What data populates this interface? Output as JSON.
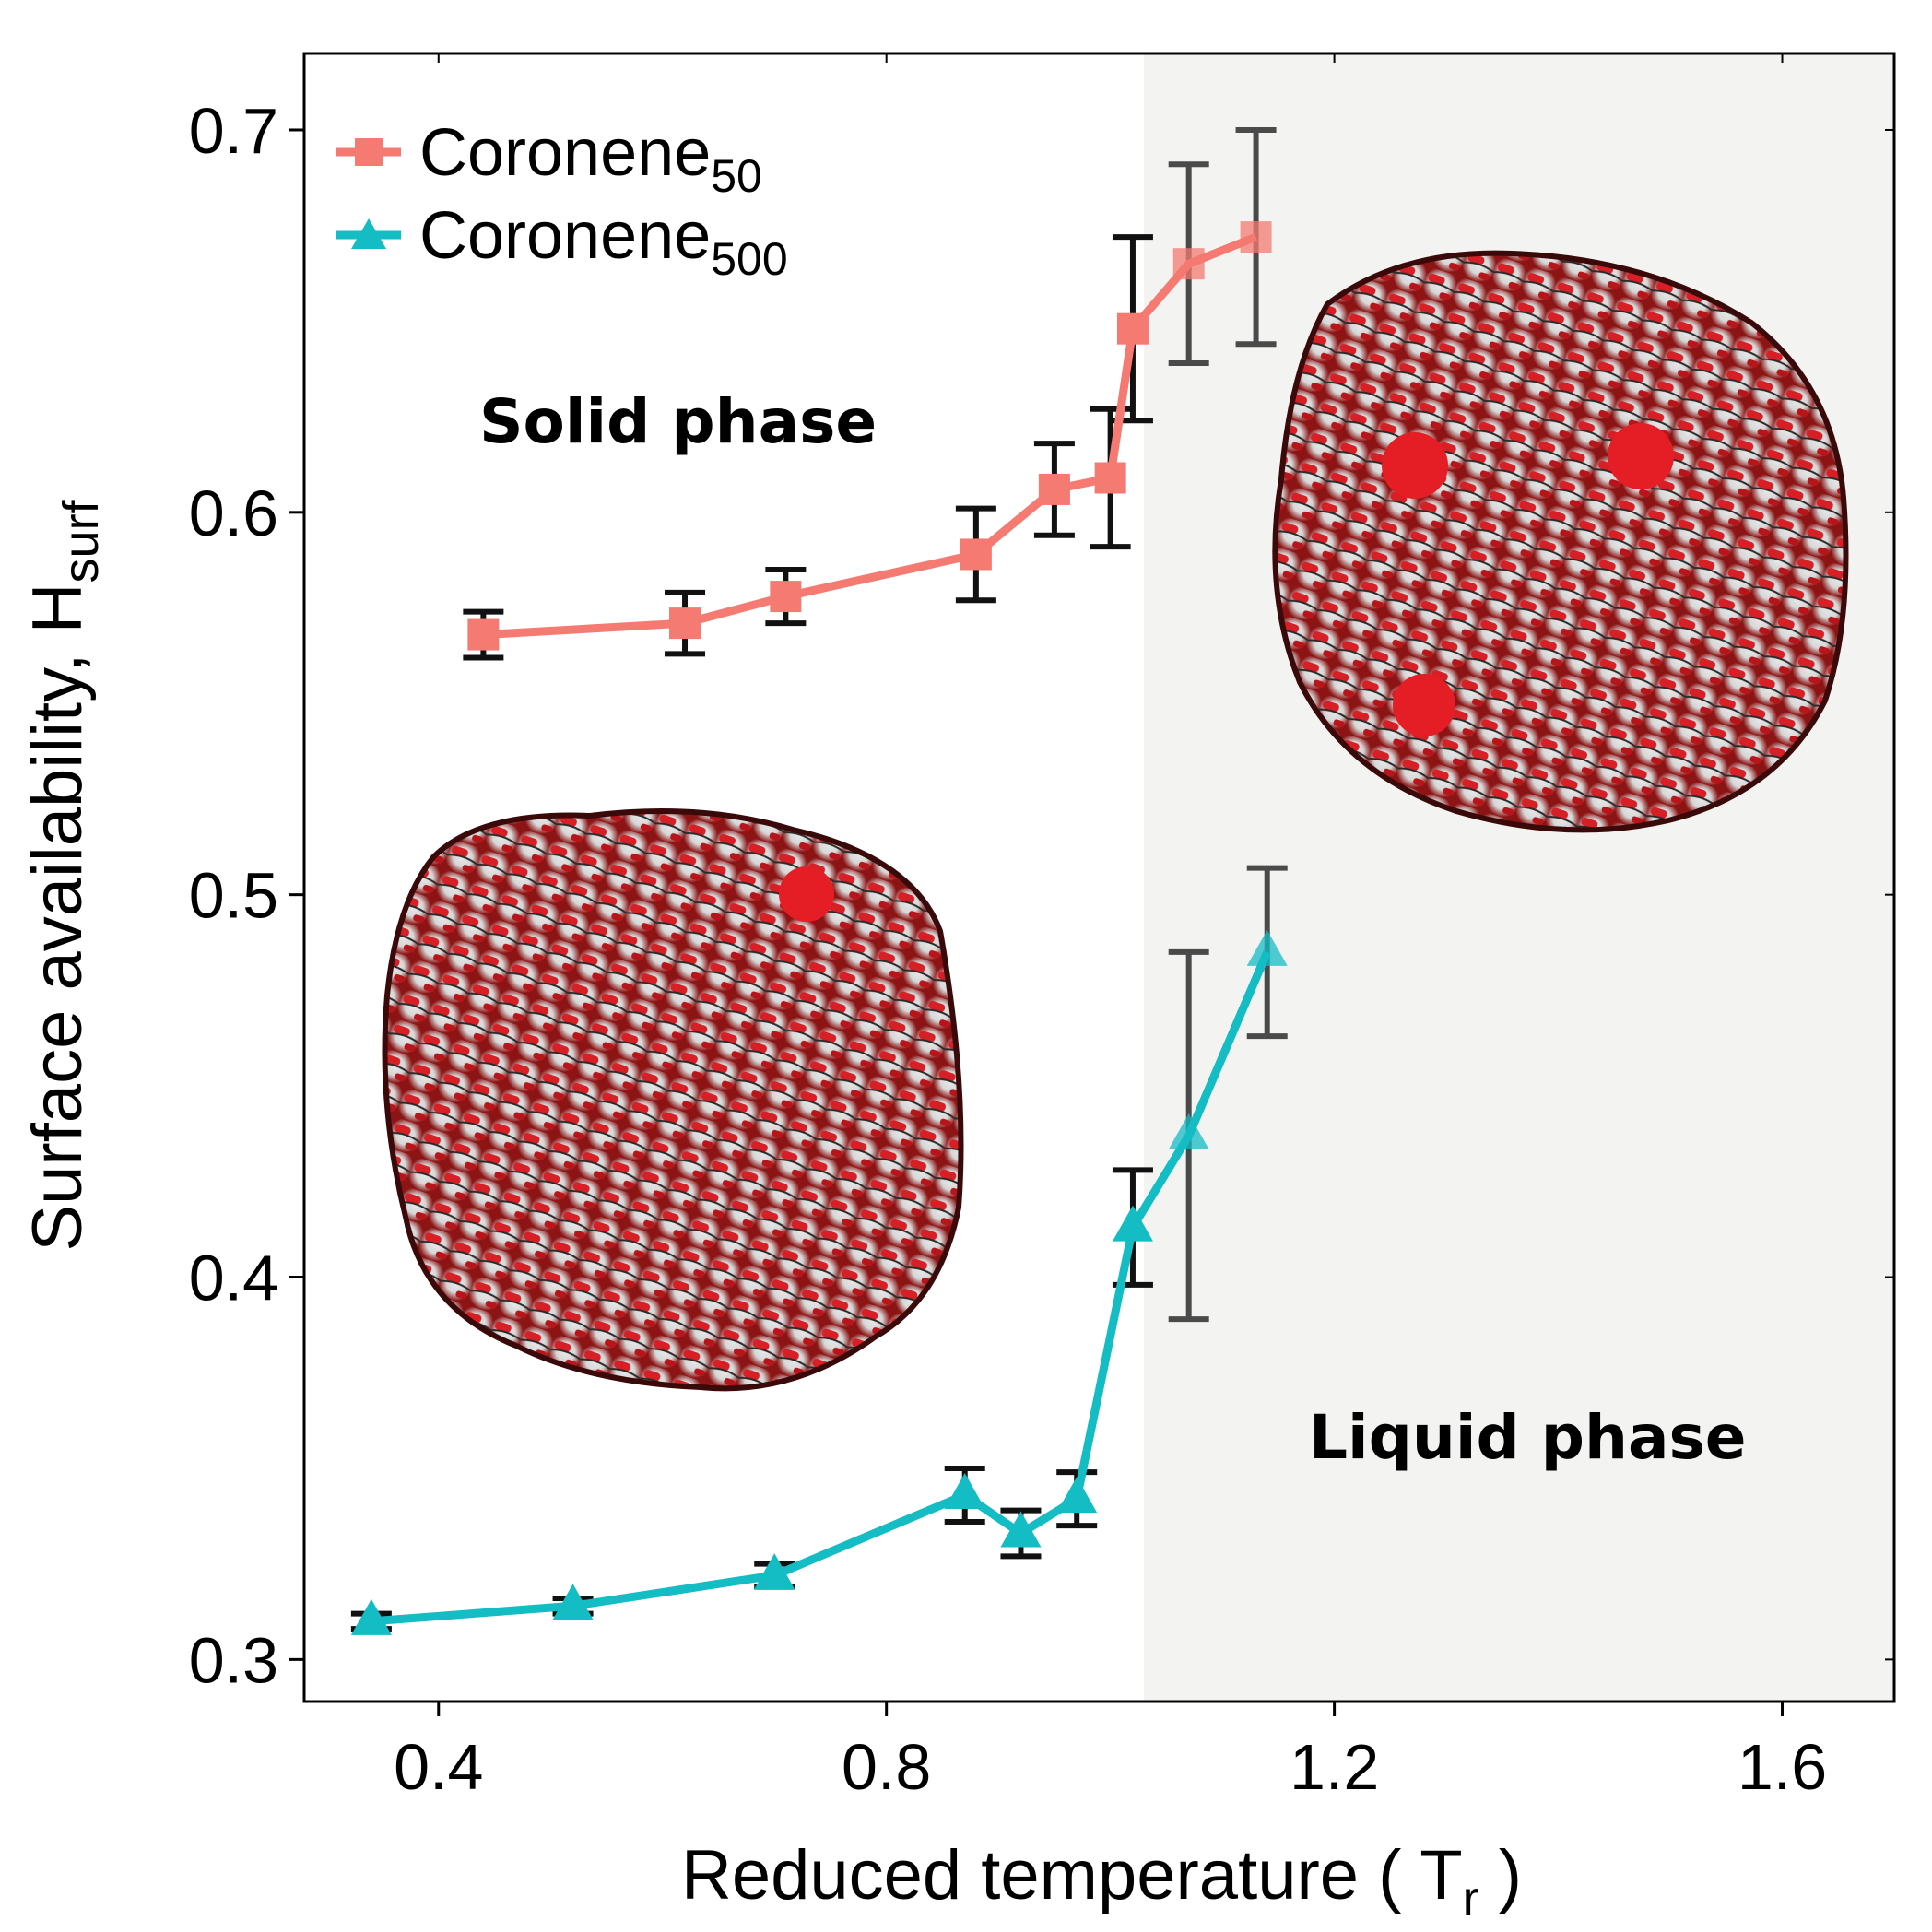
{
  "chart_data": {
    "type": "line",
    "xlabel": "Reduced temperature ( T",
    "xlabel_sub": "r",
    "xlabel_end": " )",
    "ylabel": "Surface availability, H",
    "ylabel_sub": "surf",
    "xlim": [
      0.28,
      1.7
    ],
    "ylim": [
      0.289,
      0.72
    ],
    "xticks": [
      0.4,
      0.8,
      1.2,
      1.6
    ],
    "xtick_labels": [
      "0.4",
      "0.8",
      "1.2",
      "1.6"
    ],
    "yticks": [
      0.3,
      0.4,
      0.5,
      0.6,
      0.7
    ],
    "ytick_labels": [
      "0.3",
      "0.4",
      "0.5",
      "0.6",
      "0.7"
    ],
    "grid": false,
    "legend_position": "top-left",
    "shaded_region": {
      "x_start": 1.03,
      "label": "Liquid phase",
      "color": "#f3f3f1"
    },
    "annotations": [
      {
        "text": "Solid phase",
        "x": 0.45,
        "y": 0.625
      },
      {
        "text": "Liquid phase",
        "x": 1.23,
        "y": 0.355
      }
    ],
    "series": [
      {
        "name": "Coronene",
        "name_sub": "50",
        "color": "#f47a72",
        "marker": "square",
        "points": [
          {
            "x": 0.44,
            "y": 0.568,
            "err": 0.006
          },
          {
            "x": 0.62,
            "y": 0.571,
            "err": 0.008
          },
          {
            "x": 0.71,
            "y": 0.578,
            "err": 0.007
          },
          {
            "x": 0.88,
            "y": 0.589,
            "err": 0.012
          },
          {
            "x": 0.95,
            "y": 0.606,
            "err": 0.012
          },
          {
            "x": 1.0,
            "y": 0.609,
            "err": 0.018
          },
          {
            "x": 1.02,
            "y": 0.648,
            "err": 0.024
          },
          {
            "x": 1.07,
            "y": 0.665,
            "err": 0.026
          },
          {
            "x": 1.13,
            "y": 0.672,
            "err": 0.028
          }
        ]
      },
      {
        "name": "Coronene",
        "name_sub": "500",
        "color": "#14bcc4",
        "marker": "triangle",
        "points": [
          {
            "x": 0.34,
            "y": 0.31,
            "err": 0.002
          },
          {
            "x": 0.52,
            "y": 0.314,
            "err": 0.002
          },
          {
            "x": 0.7,
            "y": 0.322,
            "err": 0.003
          },
          {
            "x": 0.87,
            "y": 0.343,
            "err": 0.007
          },
          {
            "x": 0.92,
            "y": 0.333,
            "err": 0.006
          },
          {
            "x": 0.97,
            "y": 0.342,
            "err": 0.007
          },
          {
            "x": 1.02,
            "y": 0.413,
            "err": 0.015
          },
          {
            "x": 1.07,
            "y": 0.437,
            "err": 0.048
          },
          {
            "x": 1.14,
            "y": 0.485,
            "err": 0.022
          }
        ]
      }
    ]
  }
}
